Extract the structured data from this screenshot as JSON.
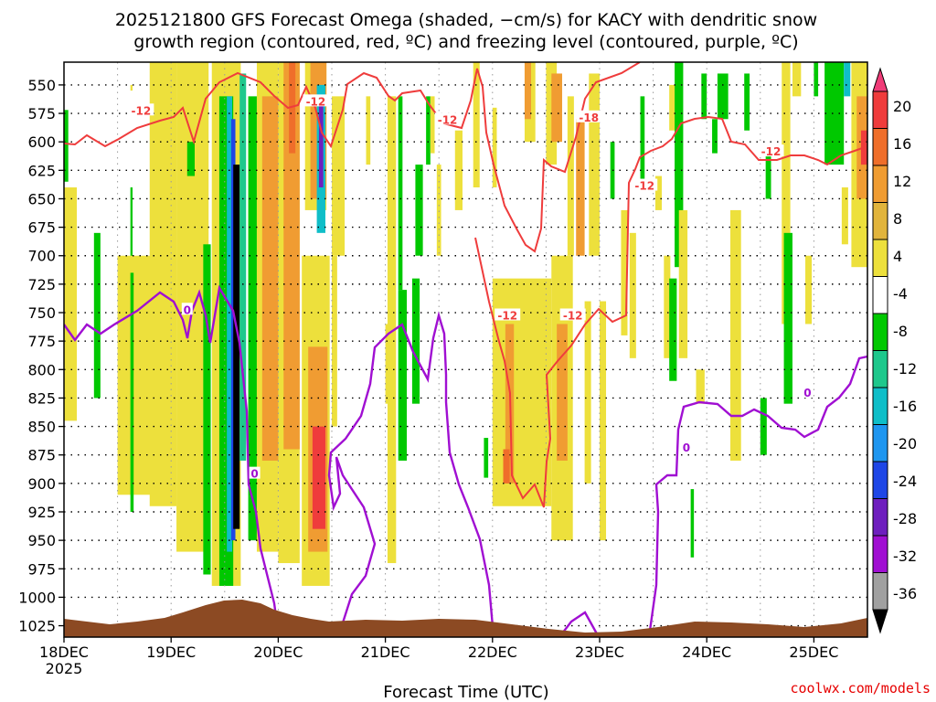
{
  "chart_data": {
    "type": "heatmap",
    "title_lines": [
      "2025121800 GFS Forecast Omega (shaded, −cm/s) for KACY with dendritic snow",
      "growth region (contoured, red, ºC) and freezing level (contoured, purple, ºC)"
    ],
    "xlabel": "Forecast Time (UTC)",
    "x_ticks": [
      "18DEC",
      "19DEC",
      "20DEC",
      "21DEC",
      "22DEC",
      "23DEC",
      "24DEC",
      "25DEC"
    ],
    "x_year": "2025",
    "xlim_days": [
      0,
      7.5
    ],
    "y_ticks": [
      550,
      575,
      600,
      625,
      650,
      675,
      700,
      725,
      750,
      775,
      800,
      825,
      850,
      875,
      900,
      925,
      950,
      975,
      1000,
      1025
    ],
    "ylim_hpa": [
      530,
      1035
    ],
    "y_inverted": true,
    "grid": true,
    "colorbar": {
      "labels": [
        "20",
        "16",
        "12",
        "8",
        "4",
        "-4",
        "-8",
        "-12",
        "-16",
        "-20",
        "-24",
        "-28",
        "-32",
        "-36"
      ],
      "colors": [
        "#f03c78",
        "#ef3c3c",
        "#ef6e2a",
        "#f09c32",
        "#e1b43c",
        "#ede03c",
        "#ffffff",
        "#00c800",
        "#1ec88c",
        "#0fbec8",
        "#1e96f0",
        "#1e46e6",
        "#6e1ebe",
        "#a00fd2",
        "#a0a0a0",
        "#000000"
      ]
    },
    "contour_labels": [
      {
        "text": "-12",
        "day": 0.72,
        "hpa": 572
      },
      {
        "text": "-12",
        "day": 2.35,
        "hpa": 564
      },
      {
        "text": "-12",
        "day": 3.58,
        "hpa": 580
      },
      {
        "text": "-18",
        "day": 4.9,
        "hpa": 578
      },
      {
        "text": "-12",
        "day": 5.42,
        "hpa": 638
      },
      {
        "text": "-12",
        "day": 4.14,
        "hpa": 752
      },
      {
        "text": "-12",
        "day": 4.75,
        "hpa": 752
      },
      {
        "text": "-12",
        "day": 6.6,
        "hpa": 608
      },
      {
        "text": "0",
        "day": 1.15,
        "hpa": 747
      },
      {
        "text": "0",
        "day": 1.78,
        "hpa": 891
      },
      {
        "text": "0",
        "day": 5.81,
        "hpa": 868
      },
      {
        "text": "0",
        "day": 6.94,
        "hpa": 820
      }
    ],
    "shading": [
      {
        "day0": 0.0,
        "day1": 0.04,
        "p_top": 572,
        "p_bot": 635,
        "c": "#00c800"
      },
      {
        "day0": 0.0,
        "day1": 0.12,
        "p_top": 640,
        "p_bot": 845,
        "c": "#ede03c"
      },
      {
        "day0": 0.28,
        "day1": 0.34,
        "p_top": 680,
        "p_bot": 825,
        "c": "#00c800"
      },
      {
        "day0": 0.62,
        "day1": 0.64,
        "p_top": 640,
        "p_bot": 835,
        "c": "#00c800"
      },
      {
        "day0": 0.5,
        "day1": 0.9,
        "p_top": 700,
        "p_bot": 910,
        "c": "#ede03c"
      },
      {
        "day0": 0.62,
        "day1": 0.65,
        "p_top": 715,
        "p_bot": 925,
        "c": "#00c800"
      },
      {
        "day0": 0.62,
        "day1": 0.64,
        "p_top": 550,
        "p_bot": 555,
        "c": "#ede03c"
      },
      {
        "day0": 0.98,
        "day1": 1.02,
        "p_top": 560,
        "p_bot": 575,
        "c": "#00c800"
      },
      {
        "day0": 0.8,
        "day1": 1.05,
        "p_top": 530,
        "p_bot": 920,
        "c": "#ede03c"
      },
      {
        "day0": 1.05,
        "day1": 1.35,
        "p_top": 530,
        "p_bot": 960,
        "c": "#ede03c"
      },
      {
        "day0": 1.15,
        "day1": 1.22,
        "p_top": 600,
        "p_bot": 630,
        "c": "#00c800"
      },
      {
        "day0": 1.3,
        "day1": 1.37,
        "p_top": 690,
        "p_bot": 980,
        "c": "#00c800"
      },
      {
        "day0": 1.38,
        "day1": 1.65,
        "p_top": 530,
        "p_bot": 990,
        "c": "#ede03c"
      },
      {
        "day0": 1.45,
        "day1": 1.58,
        "p_top": 560,
        "p_bot": 990,
        "c": "#00c800"
      },
      {
        "day0": 1.52,
        "day1": 1.57,
        "p_top": 560,
        "p_bot": 960,
        "c": "#0fbec8"
      },
      {
        "day0": 1.56,
        "day1": 1.6,
        "p_top": 580,
        "p_bot": 950,
        "c": "#1e46e6"
      },
      {
        "day0": 1.58,
        "day1": 1.64,
        "p_top": 620,
        "p_bot": 940,
        "c": "#000000"
      },
      {
        "day0": 1.64,
        "day1": 1.7,
        "p_top": 540,
        "p_bot": 880,
        "c": "#1ec88c"
      },
      {
        "day0": 1.72,
        "day1": 1.8,
        "p_top": 560,
        "p_bot": 950,
        "c": "#00c800"
      },
      {
        "day0": 1.8,
        "day1": 2.0,
        "p_top": 530,
        "p_bot": 960,
        "c": "#ede03c"
      },
      {
        "day0": 1.85,
        "day1": 2.05,
        "p_top": 560,
        "p_bot": 880,
        "c": "#f09c32"
      },
      {
        "day0": 2.0,
        "day1": 2.2,
        "p_top": 530,
        "p_bot": 970,
        "c": "#ede03c"
      },
      {
        "day0": 2.05,
        "day1": 2.2,
        "p_top": 530,
        "p_bot": 870,
        "c": "#f09c32"
      },
      {
        "day0": 2.1,
        "day1": 2.16,
        "p_top": 530,
        "p_bot": 610,
        "c": "#ef6e2a"
      },
      {
        "day0": 2.25,
        "day1": 2.45,
        "p_top": 530,
        "p_bot": 660,
        "c": "#ede03c"
      },
      {
        "day0": 2.3,
        "day1": 2.45,
        "p_top": 530,
        "p_bot": 650,
        "c": "#f09c32"
      },
      {
        "day0": 2.36,
        "day1": 2.44,
        "p_top": 550,
        "p_bot": 680,
        "c": "#0fbec8"
      },
      {
        "day0": 2.38,
        "day1": 2.42,
        "p_top": 560,
        "p_bot": 640,
        "c": "#6e1ebe"
      },
      {
        "day0": 2.22,
        "day1": 2.48,
        "p_top": 700,
        "p_bot": 990,
        "c": "#ede03c"
      },
      {
        "day0": 2.28,
        "day1": 2.46,
        "p_top": 780,
        "p_bot": 960,
        "c": "#f09c32"
      },
      {
        "day0": 2.32,
        "day1": 2.44,
        "p_top": 850,
        "p_bot": 940,
        "c": "#ef3c3c"
      },
      {
        "day0": 2.5,
        "day1": 2.62,
        "p_top": 560,
        "p_bot": 700,
        "c": "#ede03c"
      },
      {
        "day0": 2.5,
        "day1": 2.55,
        "p_top": 700,
        "p_bot": 850,
        "c": "#ede03c"
      },
      {
        "day0": 2.82,
        "day1": 2.86,
        "p_top": 560,
        "p_bot": 620,
        "c": "#ede03c"
      },
      {
        "day0": 3.0,
        "day1": 3.04,
        "p_top": 760,
        "p_bot": 830,
        "c": "#ede03c"
      },
      {
        "day0": 3.02,
        "day1": 3.1,
        "p_top": 560,
        "p_bot": 970,
        "c": "#ede03c"
      },
      {
        "day0": 3.12,
        "day1": 3.16,
        "p_top": 560,
        "p_bot": 730,
        "c": "#00c800"
      },
      {
        "day0": 3.12,
        "day1": 3.2,
        "p_top": 730,
        "p_bot": 880,
        "c": "#00c800"
      },
      {
        "day0": 3.25,
        "day1": 3.32,
        "p_top": 720,
        "p_bot": 830,
        "c": "#00c800"
      },
      {
        "day0": 3.28,
        "day1": 3.35,
        "p_top": 620,
        "p_bot": 700,
        "c": "#00c800"
      },
      {
        "day0": 3.38,
        "day1": 3.42,
        "p_top": 560,
        "p_bot": 620,
        "c": "#00c800"
      },
      {
        "day0": 3.42,
        "day1": 3.46,
        "p_top": 560,
        "p_bot": 610,
        "c": "#ede03c"
      },
      {
        "day0": 3.48,
        "day1": 3.52,
        "p_top": 620,
        "p_bot": 700,
        "c": "#ede03c"
      },
      {
        "day0": 3.65,
        "day1": 3.72,
        "p_top": 590,
        "p_bot": 660,
        "c": "#ede03c"
      },
      {
        "day0": 3.82,
        "day1": 3.88,
        "p_top": 530,
        "p_bot": 640,
        "c": "#ede03c"
      },
      {
        "day0": 3.92,
        "day1": 3.96,
        "p_top": 860,
        "p_bot": 895,
        "c": "#00c800"
      },
      {
        "day0": 4.0,
        "day1": 4.04,
        "p_top": 570,
        "p_bot": 640,
        "c": "#ede03c"
      },
      {
        "day0": 4.0,
        "day1": 4.55,
        "p_top": 720,
        "p_bot": 920,
        "c": "#ede03c"
      },
      {
        "day0": 4.12,
        "day1": 4.2,
        "p_top": 760,
        "p_bot": 900,
        "c": "#f09c32"
      },
      {
        "day0": 4.1,
        "day1": 4.16,
        "p_top": 870,
        "p_bot": 900,
        "c": "#ef6e2a"
      },
      {
        "day0": 4.3,
        "day1": 4.4,
        "p_top": 530,
        "p_bot": 600,
        "c": "#ede03c"
      },
      {
        "day0": 4.3,
        "day1": 4.36,
        "p_top": 530,
        "p_bot": 580,
        "c": "#f09c32"
      },
      {
        "day0": 4.5,
        "day1": 4.6,
        "p_top": 530,
        "p_bot": 620,
        "c": "#ede03c"
      },
      {
        "day0": 4.55,
        "day1": 4.65,
        "p_top": 540,
        "p_bot": 600,
        "c": "#f09c32"
      },
      {
        "day0": 4.55,
        "day1": 4.75,
        "p_top": 700,
        "p_bot": 950,
        "c": "#ede03c"
      },
      {
        "day0": 4.6,
        "day1": 4.7,
        "p_top": 760,
        "p_bot": 880,
        "c": "#f09c32"
      },
      {
        "day0": 4.7,
        "day1": 4.76,
        "p_top": 560,
        "p_bot": 700,
        "c": "#ede03c"
      },
      {
        "day0": 4.78,
        "day1": 4.86,
        "p_top": 580,
        "p_bot": 700,
        "c": "#f09c32"
      },
      {
        "day0": 4.86,
        "day1": 4.92,
        "p_top": 740,
        "p_bot": 900,
        "c": "#ede03c"
      },
      {
        "day0": 4.9,
        "day1": 5.0,
        "p_top": 540,
        "p_bot": 700,
        "c": "#ede03c"
      },
      {
        "day0": 5.0,
        "day1": 5.06,
        "p_top": 740,
        "p_bot": 950,
        "c": "#ede03c"
      },
      {
        "day0": 5.1,
        "day1": 5.14,
        "p_top": 600,
        "p_bot": 650,
        "c": "#00c800"
      },
      {
        "day0": 5.2,
        "day1": 5.26,
        "p_top": 660,
        "p_bot": 770,
        "c": "#ede03c"
      },
      {
        "day0": 5.28,
        "day1": 5.34,
        "p_top": 680,
        "p_bot": 790,
        "c": "#ede03c"
      },
      {
        "day0": 5.38,
        "day1": 5.42,
        "p_top": 560,
        "p_bot": 640,
        "c": "#00c800"
      },
      {
        "day0": 5.52,
        "day1": 5.58,
        "p_top": 630,
        "p_bot": 660,
        "c": "#ede03c"
      },
      {
        "day0": 5.65,
        "day1": 5.7,
        "p_top": 550,
        "p_bot": 590,
        "c": "#ede03c"
      },
      {
        "day0": 5.6,
        "day1": 5.66,
        "p_top": 700,
        "p_bot": 790,
        "c": "#ede03c"
      },
      {
        "day0": 5.65,
        "day1": 5.72,
        "p_top": 720,
        "p_bot": 810,
        "c": "#00c800"
      },
      {
        "day0": 5.7,
        "day1": 5.78,
        "p_top": 530,
        "p_bot": 710,
        "c": "#00c800"
      },
      {
        "day0": 5.74,
        "day1": 5.82,
        "p_top": 660,
        "p_bot": 790,
        "c": "#ede03c"
      },
      {
        "day0": 5.9,
        "day1": 5.98,
        "p_top": 800,
        "p_bot": 830,
        "c": "#ede03c"
      },
      {
        "day0": 5.85,
        "day1": 5.88,
        "p_top": 905,
        "p_bot": 965,
        "c": "#00c800"
      },
      {
        "day0": 5.95,
        "day1": 6.0,
        "p_top": 540,
        "p_bot": 580,
        "c": "#00c800"
      },
      {
        "day0": 6.1,
        "day1": 6.2,
        "p_top": 540,
        "p_bot": 580,
        "c": "#00c800"
      },
      {
        "day0": 6.05,
        "day1": 6.1,
        "p_top": 580,
        "p_bot": 610,
        "c": "#00c800"
      },
      {
        "day0": 6.22,
        "day1": 6.32,
        "p_top": 660,
        "p_bot": 880,
        "c": "#ede03c"
      },
      {
        "day0": 6.35,
        "day1": 6.4,
        "p_top": 540,
        "p_bot": 590,
        "c": "#00c800"
      },
      {
        "day0": 6.5,
        "day1": 6.56,
        "p_top": 825,
        "p_bot": 875,
        "c": "#00c800"
      },
      {
        "day0": 6.55,
        "day1": 6.6,
        "p_top": 610,
        "p_bot": 650,
        "c": "#00c800"
      },
      {
        "day0": 6.7,
        "day1": 6.78,
        "p_top": 530,
        "p_bot": 760,
        "c": "#ede03c"
      },
      {
        "day0": 6.72,
        "day1": 6.8,
        "p_top": 680,
        "p_bot": 830,
        "c": "#00c800"
      },
      {
        "day0": 6.8,
        "day1": 6.88,
        "p_top": 530,
        "p_bot": 560,
        "c": "#ede03c"
      },
      {
        "day0": 6.92,
        "day1": 6.98,
        "p_top": 700,
        "p_bot": 760,
        "c": "#ede03c"
      },
      {
        "day0": 7.0,
        "day1": 7.04,
        "p_top": 530,
        "p_bot": 560,
        "c": "#00c800"
      },
      {
        "day0": 7.1,
        "day1": 7.28,
        "p_top": 530,
        "p_bot": 620,
        "c": "#00c800"
      },
      {
        "day0": 7.28,
        "day1": 7.34,
        "p_top": 530,
        "p_bot": 560,
        "c": "#0fbec8"
      },
      {
        "day0": 7.26,
        "day1": 7.32,
        "p_top": 640,
        "p_bot": 690,
        "c": "#ede03c"
      },
      {
        "day0": 7.35,
        "day1": 7.5,
        "p_top": 530,
        "p_bot": 710,
        "c": "#ede03c"
      },
      {
        "day0": 7.4,
        "day1": 7.5,
        "p_top": 560,
        "p_bot": 650,
        "c": "#f09c32"
      },
      {
        "day0": 7.44,
        "day1": 7.5,
        "p_top": 590,
        "p_bot": 620,
        "c": "#ef3c3c"
      }
    ]
  },
  "credit": "coolwx.com/models"
}
